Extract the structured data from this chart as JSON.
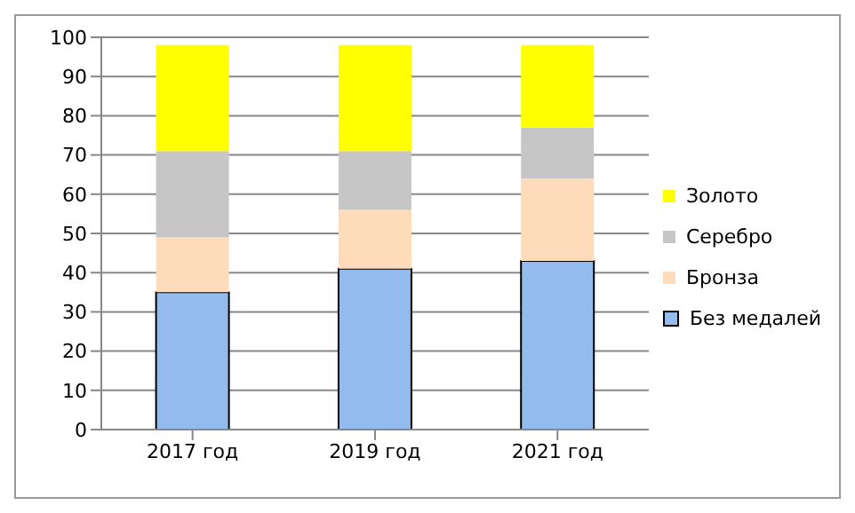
{
  "chart_data": {
    "type": "bar",
    "stacked": true,
    "categories": [
      "2017 год",
      "2019 год",
      "2021 год"
    ],
    "series": [
      {
        "name": "Без медалей",
        "color": "#93bbed",
        "values": [
          35,
          41,
          43
        ]
      },
      {
        "name": "Бронза",
        "color": "#fedcbb",
        "values": [
          14,
          15,
          21
        ]
      },
      {
        "name": "Серебро",
        "color": "#c6c6c6",
        "values": [
          22,
          15,
          13
        ]
      },
      {
        "name": "Золото",
        "color": "#ffff00",
        "values": [
          27,
          27,
          21
        ]
      }
    ],
    "ylim": [
      0,
      100
    ],
    "yticks": [
      0,
      10,
      20,
      30,
      40,
      50,
      60,
      70,
      80,
      90,
      100
    ],
    "grid": "y",
    "legend": "right"
  }
}
